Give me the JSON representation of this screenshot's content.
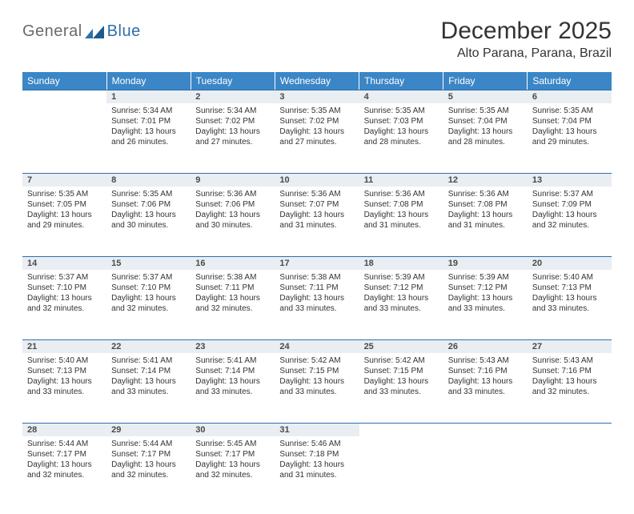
{
  "logo": {
    "text1": "General",
    "text2": "Blue",
    "mark_color": "#2f6fa8"
  },
  "title": "December 2025",
  "subtitle": "Alto Parana, Parana, Brazil",
  "header_bg": "#3b86c6",
  "header_fg": "#ffffff",
  "daynum_bg": "#e9eef3",
  "daynum_border": "#2f6fa8",
  "text_color": "#333333",
  "font_size_body": 10,
  "days_of_week": [
    "Sunday",
    "Monday",
    "Tuesday",
    "Wednesday",
    "Thursday",
    "Friday",
    "Saturday"
  ],
  "first_day_column": 1,
  "days_in_month": 31,
  "cells": {
    "1": {
      "sunrise": "5:34 AM",
      "sunset": "7:01 PM",
      "daylight": "13 hours and 26 minutes."
    },
    "2": {
      "sunrise": "5:34 AM",
      "sunset": "7:02 PM",
      "daylight": "13 hours and 27 minutes."
    },
    "3": {
      "sunrise": "5:35 AM",
      "sunset": "7:02 PM",
      "daylight": "13 hours and 27 minutes."
    },
    "4": {
      "sunrise": "5:35 AM",
      "sunset": "7:03 PM",
      "daylight": "13 hours and 28 minutes."
    },
    "5": {
      "sunrise": "5:35 AM",
      "sunset": "7:04 PM",
      "daylight": "13 hours and 28 minutes."
    },
    "6": {
      "sunrise": "5:35 AM",
      "sunset": "7:04 PM",
      "daylight": "13 hours and 29 minutes."
    },
    "7": {
      "sunrise": "5:35 AM",
      "sunset": "7:05 PM",
      "daylight": "13 hours and 29 minutes."
    },
    "8": {
      "sunrise": "5:35 AM",
      "sunset": "7:06 PM",
      "daylight": "13 hours and 30 minutes."
    },
    "9": {
      "sunrise": "5:36 AM",
      "sunset": "7:06 PM",
      "daylight": "13 hours and 30 minutes."
    },
    "10": {
      "sunrise": "5:36 AM",
      "sunset": "7:07 PM",
      "daylight": "13 hours and 31 minutes."
    },
    "11": {
      "sunrise": "5:36 AM",
      "sunset": "7:08 PM",
      "daylight": "13 hours and 31 minutes."
    },
    "12": {
      "sunrise": "5:36 AM",
      "sunset": "7:08 PM",
      "daylight": "13 hours and 31 minutes."
    },
    "13": {
      "sunrise": "5:37 AM",
      "sunset": "7:09 PM",
      "daylight": "13 hours and 32 minutes."
    },
    "14": {
      "sunrise": "5:37 AM",
      "sunset": "7:10 PM",
      "daylight": "13 hours and 32 minutes."
    },
    "15": {
      "sunrise": "5:37 AM",
      "sunset": "7:10 PM",
      "daylight": "13 hours and 32 minutes."
    },
    "16": {
      "sunrise": "5:38 AM",
      "sunset": "7:11 PM",
      "daylight": "13 hours and 32 minutes."
    },
    "17": {
      "sunrise": "5:38 AM",
      "sunset": "7:11 PM",
      "daylight": "13 hours and 33 minutes."
    },
    "18": {
      "sunrise": "5:39 AM",
      "sunset": "7:12 PM",
      "daylight": "13 hours and 33 minutes."
    },
    "19": {
      "sunrise": "5:39 AM",
      "sunset": "7:12 PM",
      "daylight": "13 hours and 33 minutes."
    },
    "20": {
      "sunrise": "5:40 AM",
      "sunset": "7:13 PM",
      "daylight": "13 hours and 33 minutes."
    },
    "21": {
      "sunrise": "5:40 AM",
      "sunset": "7:13 PM",
      "daylight": "13 hours and 33 minutes."
    },
    "22": {
      "sunrise": "5:41 AM",
      "sunset": "7:14 PM",
      "daylight": "13 hours and 33 minutes."
    },
    "23": {
      "sunrise": "5:41 AM",
      "sunset": "7:14 PM",
      "daylight": "13 hours and 33 minutes."
    },
    "24": {
      "sunrise": "5:42 AM",
      "sunset": "7:15 PM",
      "daylight": "13 hours and 33 minutes."
    },
    "25": {
      "sunrise": "5:42 AM",
      "sunset": "7:15 PM",
      "daylight": "13 hours and 33 minutes."
    },
    "26": {
      "sunrise": "5:43 AM",
      "sunset": "7:16 PM",
      "daylight": "13 hours and 33 minutes."
    },
    "27": {
      "sunrise": "5:43 AM",
      "sunset": "7:16 PM",
      "daylight": "13 hours and 32 minutes."
    },
    "28": {
      "sunrise": "5:44 AM",
      "sunset": "7:17 PM",
      "daylight": "13 hours and 32 minutes."
    },
    "29": {
      "sunrise": "5:44 AM",
      "sunset": "7:17 PM",
      "daylight": "13 hours and 32 minutes."
    },
    "30": {
      "sunrise": "5:45 AM",
      "sunset": "7:17 PM",
      "daylight": "13 hours and 32 minutes."
    },
    "31": {
      "sunrise": "5:46 AM",
      "sunset": "7:18 PM",
      "daylight": "13 hours and 31 minutes."
    }
  },
  "labels": {
    "sunrise": "Sunrise:",
    "sunset": "Sunset:",
    "daylight": "Daylight:"
  }
}
